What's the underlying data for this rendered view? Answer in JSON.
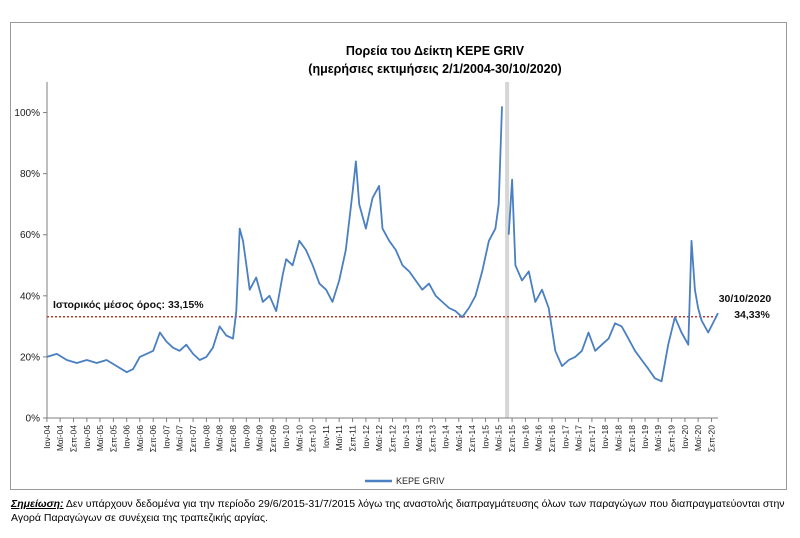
{
  "chart_data": {
    "type": "line",
    "title": "Πορεία του Δείκτη ΚΕΡΕ GRIV",
    "subtitle": "(ημερήσιες εκτιμήσεις 2/1/2004-30/10/2020)",
    "xlabel": "",
    "ylabel": "",
    "ylim": [
      0,
      110
    ],
    "yticks": [
      "0%",
      "20%",
      "40%",
      "60%",
      "80%",
      "100%"
    ],
    "ytick_values": [
      0,
      20,
      40,
      60,
      80,
      100
    ],
    "x_range": [
      "2004-01-02",
      "2020-10-30"
    ],
    "xtick_labels": [
      "Ιαν-04",
      "Μαϊ-04",
      "Σεπ-04",
      "Ιαν-05",
      "Μαϊ-05",
      "Σεπ-05",
      "Ιαν-06",
      "Μαϊ-06",
      "Σεπ-06",
      "Ιαν-07",
      "Μαϊ-07",
      "Σεπ-07",
      "Ιαν-08",
      "Μαϊ-08",
      "Σεπ-08",
      "Ιαν-09",
      "Μαϊ-09",
      "Σεπ-09",
      "Ιαν-10",
      "Μαϊ-10",
      "Σεπ-10",
      "Ιαν-11",
      "Μαϊ-11",
      "Σεπ-11",
      "Ιαν-12",
      "Μαϊ-12",
      "Σεπ-12",
      "Ιαν-13",
      "Μαϊ-13",
      "Σεπ-13",
      "Ιαν-14",
      "Μαϊ-14",
      "Σεπ-14",
      "Ιαν-15",
      "Μαϊ-15",
      "Σεπ-15",
      "Ιαν-16",
      "Μαϊ-16",
      "Σεπ-16",
      "Ιαν-17",
      "Μαϊ-17",
      "Σεπ-17",
      "Ιαν-18",
      "Μαϊ-18",
      "Σεπ-18",
      "Ιαν-19",
      "Μαϊ-19",
      "Σεπ-19",
      "Ιαν-20",
      "Μαϊ-20",
      "Σεπ-20"
    ],
    "xtick_dates": [
      "2004-01",
      "2004-05",
      "2004-09",
      "2005-01",
      "2005-05",
      "2005-09",
      "2006-01",
      "2006-05",
      "2006-09",
      "2007-01",
      "2007-05",
      "2007-09",
      "2008-01",
      "2008-05",
      "2008-09",
      "2009-01",
      "2009-05",
      "2009-09",
      "2010-01",
      "2010-05",
      "2010-09",
      "2011-01",
      "2011-05",
      "2011-09",
      "2012-01",
      "2012-05",
      "2012-09",
      "2013-01",
      "2013-05",
      "2013-09",
      "2014-01",
      "2014-05",
      "2014-09",
      "2015-01",
      "2015-05",
      "2015-09",
      "2016-01",
      "2016-05",
      "2016-09",
      "2017-01",
      "2017-05",
      "2017-09",
      "2018-01",
      "2018-05",
      "2018-09",
      "2019-01",
      "2019-05",
      "2019-09",
      "2020-01",
      "2020-05",
      "2020-09"
    ],
    "series": [
      {
        "name": "ΚΕΡΕ GRIV",
        "color": "#4a7fc1",
        "points": [
          [
            "2004-01",
            20
          ],
          [
            "2004-04",
            21
          ],
          [
            "2004-07",
            19
          ],
          [
            "2004-10",
            18
          ],
          [
            "2005-01",
            19
          ],
          [
            "2005-04",
            18
          ],
          [
            "2005-07",
            19
          ],
          [
            "2005-10",
            17
          ],
          [
            "2006-01",
            15
          ],
          [
            "2006-03",
            16
          ],
          [
            "2006-05",
            20
          ],
          [
            "2006-07",
            21
          ],
          [
            "2006-09",
            22
          ],
          [
            "2006-11",
            28
          ],
          [
            "2007-01",
            25
          ],
          [
            "2007-03",
            23
          ],
          [
            "2007-05",
            22
          ],
          [
            "2007-07",
            24
          ],
          [
            "2007-09",
            21
          ],
          [
            "2007-11",
            19
          ],
          [
            "2008-01",
            20
          ],
          [
            "2008-03",
            23
          ],
          [
            "2008-05",
            30
          ],
          [
            "2008-07",
            27
          ],
          [
            "2008-09",
            26
          ],
          [
            "2008-10",
            35
          ],
          [
            "2008-11",
            62
          ],
          [
            "2008-12",
            58
          ],
          [
            "2009-01",
            50
          ],
          [
            "2009-02",
            42
          ],
          [
            "2009-04",
            46
          ],
          [
            "2009-06",
            38
          ],
          [
            "2009-08",
            40
          ],
          [
            "2009-10",
            35
          ],
          [
            "2009-12",
            47
          ],
          [
            "2010-01",
            52
          ],
          [
            "2010-03",
            50
          ],
          [
            "2010-05",
            58
          ],
          [
            "2010-07",
            55
          ],
          [
            "2010-09",
            50
          ],
          [
            "2010-11",
            44
          ],
          [
            "2011-01",
            42
          ],
          [
            "2011-03",
            38
          ],
          [
            "2011-05",
            45
          ],
          [
            "2011-07",
            55
          ],
          [
            "2011-09",
            74
          ],
          [
            "2011-10",
            84
          ],
          [
            "2011-11",
            70
          ],
          [
            "2012-01",
            62
          ],
          [
            "2012-03",
            72
          ],
          [
            "2012-05",
            76
          ],
          [
            "2012-06",
            62
          ],
          [
            "2012-08",
            58
          ],
          [
            "2012-10",
            55
          ],
          [
            "2012-12",
            50
          ],
          [
            "2013-02",
            48
          ],
          [
            "2013-04",
            45
          ],
          [
            "2013-06",
            42
          ],
          [
            "2013-08",
            44
          ],
          [
            "2013-10",
            40
          ],
          [
            "2013-12",
            38
          ],
          [
            "2014-02",
            36
          ],
          [
            "2014-04",
            35
          ],
          [
            "2014-06",
            33
          ],
          [
            "2014-08",
            36
          ],
          [
            "2014-10",
            40
          ],
          [
            "2014-12",
            48
          ],
          [
            "2015-02",
            58
          ],
          [
            "2015-04",
            62
          ],
          [
            "2015-05",
            70
          ],
          [
            "2015-06",
            102
          ],
          [
            "2015-06-28",
            null
          ],
          [
            "2015-08-01",
            60
          ],
          [
            "2015-09",
            78
          ],
          [
            "2015-10",
            50
          ],
          [
            "2015-12",
            45
          ],
          [
            "2016-02",
            48
          ],
          [
            "2016-04",
            38
          ],
          [
            "2016-06",
            42
          ],
          [
            "2016-08",
            36
          ],
          [
            "2016-10",
            22
          ],
          [
            "2016-12",
            17
          ],
          [
            "2017-02",
            19
          ],
          [
            "2017-04",
            20
          ],
          [
            "2017-06",
            22
          ],
          [
            "2017-08",
            28
          ],
          [
            "2017-10",
            22
          ],
          [
            "2017-12",
            24
          ],
          [
            "2018-02",
            26
          ],
          [
            "2018-04",
            31
          ],
          [
            "2018-06",
            30
          ],
          [
            "2018-08",
            26
          ],
          [
            "2018-10",
            22
          ],
          [
            "2018-12",
            19
          ],
          [
            "2019-02",
            16
          ],
          [
            "2019-04",
            13
          ],
          [
            "2019-06",
            12
          ],
          [
            "2019-08",
            24
          ],
          [
            "2019-10",
            33
          ],
          [
            "2019-12",
            28
          ],
          [
            "2020-02",
            24
          ],
          [
            "2020-03",
            58
          ],
          [
            "2020-04",
            42
          ],
          [
            "2020-05",
            36
          ],
          [
            "2020-06",
            32
          ],
          [
            "2020-08",
            28
          ],
          [
            "2020-10-30",
            34.33
          ]
        ]
      }
    ],
    "gap": [
      "2015-06-29",
      "2015-07-31"
    ],
    "reference_line": {
      "label": "Ιστορικός μέσος όρος: 33,15%",
      "value": 33.15,
      "color": "#c0392b"
    },
    "end_annotation": {
      "date": "30/10/2020",
      "value": "34,33%"
    },
    "legend": {
      "position": "bottom"
    },
    "grid": false
  },
  "note": {
    "label": "Σημείωση:",
    "text": " Δεν υπάρχουν δεδομένα για την περίοδο 29/6/2015-31/7/2015 λόγω της αναστολής διαπραγμάτευσης όλων των παραγώγων που διαπραγματεύονται στην Αγορά Παραγώγων σε συνέχεια της τραπεζικής αργίας."
  }
}
